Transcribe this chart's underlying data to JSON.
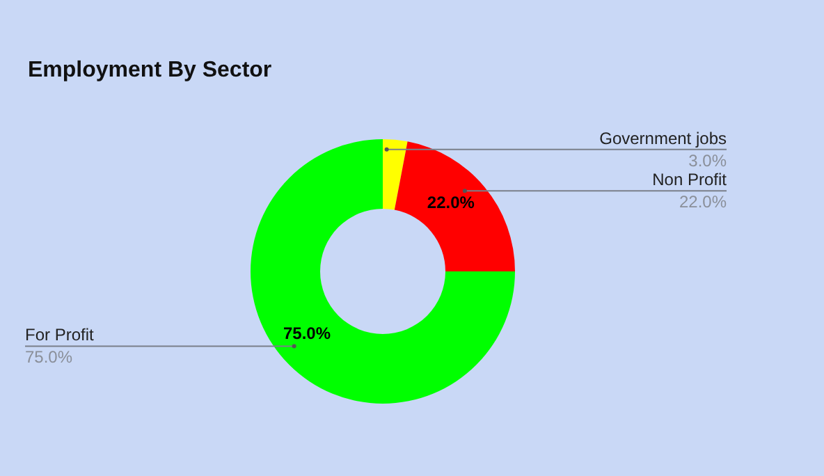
{
  "chart_data": {
    "type": "donut",
    "title": "Employment By Sector",
    "categories": [
      "Government jobs",
      "Non Profit",
      "For Profit"
    ],
    "values": [
      3,
      22,
      75
    ],
    "colors": [
      "#ffff00",
      "#ff0000",
      "#00ff00"
    ],
    "value_labels": [
      "3.0%",
      "22.0%",
      "75.0%"
    ],
    "legend": false
  }
}
